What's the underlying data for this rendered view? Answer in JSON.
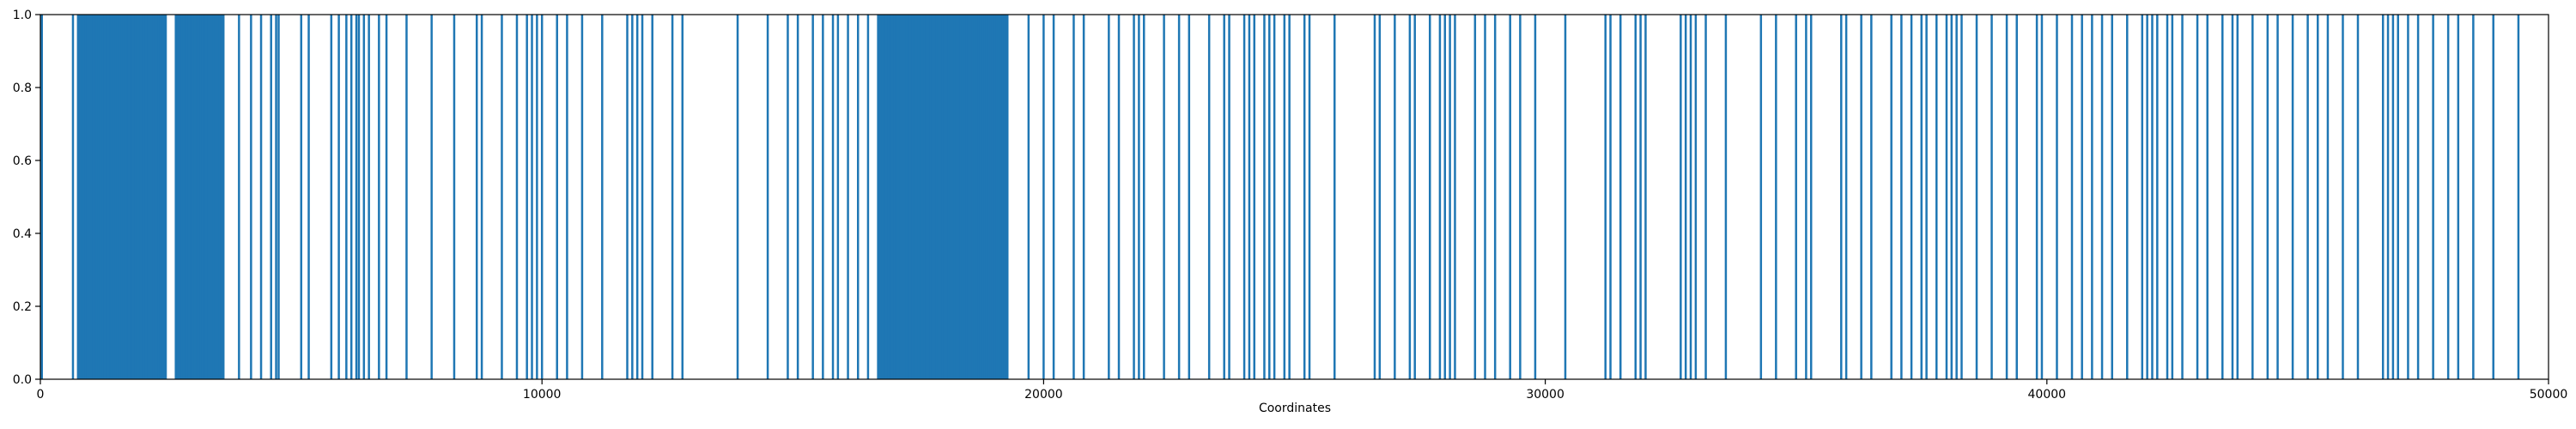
{
  "chart_data": {
    "type": "bar",
    "title": "",
    "xlabel": "Coordinates",
    "ylabel": "",
    "xlim": [
      0,
      50000
    ],
    "ylim": [
      0,
      1.0
    ],
    "xticks": [
      0,
      10000,
      20000,
      30000,
      40000,
      50000
    ],
    "xtick_labels": [
      "0",
      "10000",
      "20000",
      "30000",
      "40000",
      "50000"
    ],
    "yticks": [
      0.0,
      0.2,
      0.4,
      0.6,
      0.8,
      1.0
    ],
    "ytick_labels": [
      "0.0",
      "0.2",
      "0.4",
      "0.6",
      "0.8",
      "1.0"
    ],
    "grid": false,
    "legend": "none",
    "color": "#1f77b4",
    "series_value": 1.0,
    "dense_ranges": [
      [
        750,
        2500
      ],
      [
        2700,
        3650
      ],
      [
        16700,
        19300
      ]
    ],
    "x": [
      30,
      650,
      750,
      830,
      900,
      980,
      1050,
      1120,
      1200,
      1280,
      1350,
      1420,
      1500,
      1580,
      1650,
      1700,
      1760,
      1850,
      1950,
      2050,
      2150,
      2250,
      2350,
      2450,
      2500,
      2700,
      2780,
      2850,
      2920,
      3000,
      3080,
      3150,
      3230,
      3300,
      3380,
      3450,
      3530,
      3600,
      3650,
      3960,
      4200,
      4400,
      4600,
      4700,
      4750,
      5200,
      5350,
      5800,
      5950,
      6100,
      6200,
      6300,
      6350,
      6450,
      6550,
      6750,
      6900,
      7300,
      7800,
      8250,
      8700,
      8800,
      9200,
      9500,
      9700,
      9800,
      9900,
      10000,
      10300,
      10500,
      10800,
      11200,
      11700,
      11800,
      11900,
      12000,
      12200,
      12600,
      12800,
      13900,
      14500,
      14900,
      15100,
      15400,
      15600,
      15800,
      15900,
      16100,
      16300,
      16500,
      16700,
      16780,
      16860,
      16940,
      17020,
      17100,
      17180,
      17260,
      17340,
      17420,
      17500,
      17580,
      17660,
      17740,
      17820,
      17900,
      17980,
      18060,
      18140,
      18220,
      18300,
      18380,
      18460,
      18540,
      18620,
      18700,
      18780,
      18860,
      18940,
      19020,
      19100,
      19180,
      19260,
      19700,
      20000,
      20200,
      20600,
      20800,
      21300,
      21500,
      21800,
      21900,
      22000,
      22400,
      22700,
      22900,
      23300,
      23600,
      23700,
      24000,
      24100,
      24200,
      24400,
      24500,
      24600,
      24800,
      24900,
      25200,
      25300,
      25800,
      26600,
      26700,
      27000,
      27300,
      27400,
      27700,
      27900,
      28000,
      28100,
      28200,
      28600,
      28800,
      29000,
      29300,
      29500,
      29800,
      30400,
      31200,
      31300,
      31500,
      31800,
      31900,
      32000,
      32700,
      32800,
      32900,
      33000,
      33200,
      33600,
      34300,
      34600,
      35000,
      35200,
      35300,
      35900,
      36000,
      36300,
      36500,
      36900,
      37100,
      37300,
      37500,
      37600,
      37800,
      38000,
      38100,
      38200,
      38300,
      38600,
      38900,
      39200,
      39400,
      39800,
      39900,
      40200,
      40500,
      40700,
      40900,
      41100,
      41300,
      41600,
      41900,
      42000,
      42100,
      42200,
      42400,
      42500,
      42700,
      43000,
      43200,
      43500,
      43700,
      43800,
      44100,
      44400,
      44600,
      44900,
      45200,
      45400,
      45600,
      45900,
      46200,
      46700,
      46800,
      46900,
      47000,
      47200,
      47400,
      47700,
      48000,
      48200,
      48500,
      48900,
      49400
    ]
  }
}
